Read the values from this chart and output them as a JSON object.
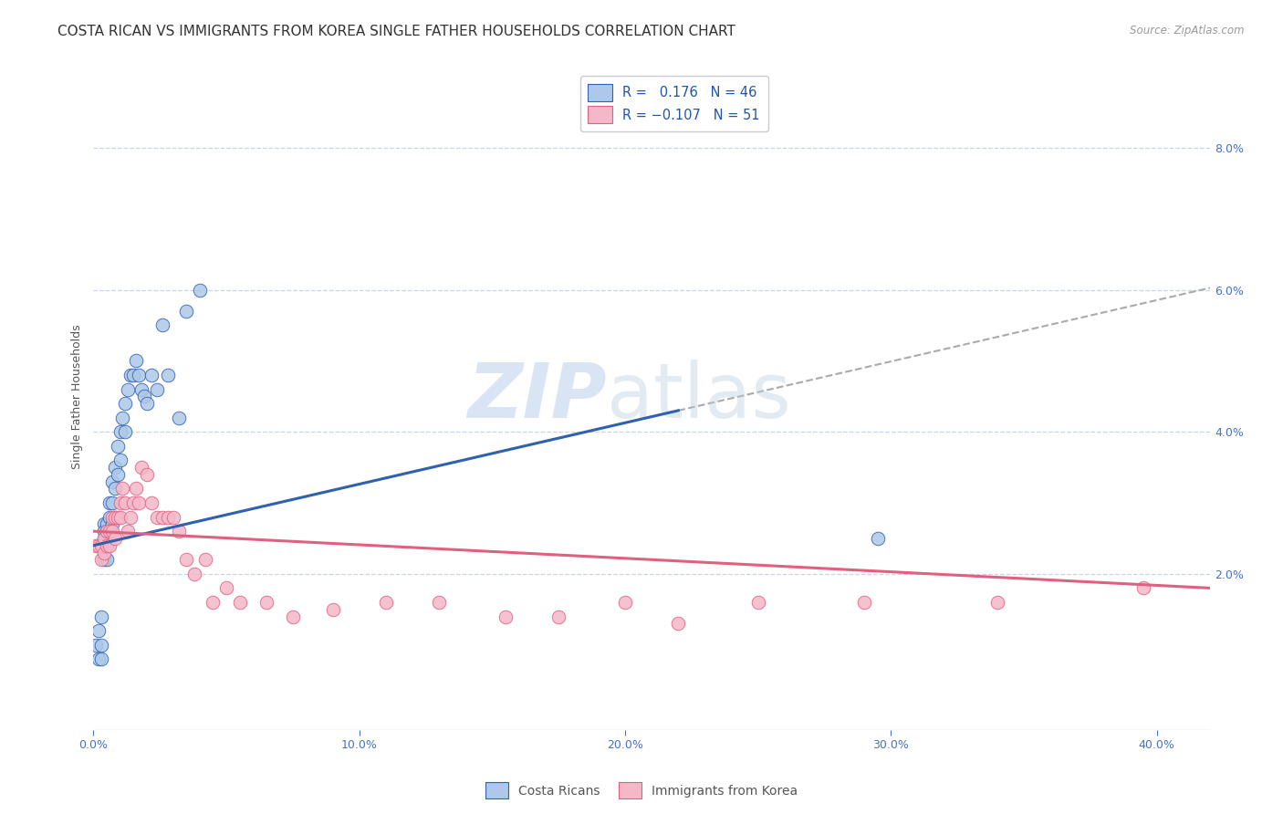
{
  "title": "COSTA RICAN VS IMMIGRANTS FROM KOREA SINGLE FATHER HOUSEHOLDS CORRELATION CHART",
  "source": "Source: ZipAtlas.com",
  "ylabel": "Single Father Households",
  "xlim": [
    0.0,
    0.42
  ],
  "ylim": [
    -0.002,
    0.092
  ],
  "xticks": [
    0.0,
    0.1,
    0.2,
    0.3,
    0.4
  ],
  "xtick_labels": [
    "0.0%",
    "10.0%",
    "20.0%",
    "30.0%",
    "40.0%"
  ],
  "yticks_right": [
    0.02,
    0.04,
    0.06,
    0.08
  ],
  "ytick_labels_right": [
    "2.0%",
    "4.0%",
    "6.0%",
    "8.0%"
  ],
  "blue_R": 0.176,
  "blue_N": 46,
  "pink_R": -0.107,
  "pink_N": 51,
  "blue_color": "#adc8e8",
  "pink_color": "#f5b8c8",
  "blue_line_color": "#3060b0",
  "pink_line_color": "#e06080",
  "trend_line_color": "#aaaaaa",
  "legend_label_blue": "Costa Ricans",
  "legend_label_pink": "Immigrants from Korea",
  "blue_scatter_x": [
    0.001,
    0.002,
    0.002,
    0.003,
    0.003,
    0.003,
    0.004,
    0.004,
    0.004,
    0.004,
    0.005,
    0.005,
    0.005,
    0.005,
    0.006,
    0.006,
    0.006,
    0.007,
    0.007,
    0.007,
    0.008,
    0.008,
    0.008,
    0.009,
    0.009,
    0.01,
    0.01,
    0.011,
    0.012,
    0.012,
    0.013,
    0.014,
    0.015,
    0.016,
    0.017,
    0.018,
    0.019,
    0.02,
    0.022,
    0.024,
    0.026,
    0.028,
    0.032,
    0.035,
    0.04,
    0.295
  ],
  "blue_scatter_y": [
    0.01,
    0.012,
    0.008,
    0.014,
    0.01,
    0.008,
    0.027,
    0.026,
    0.025,
    0.022,
    0.027,
    0.026,
    0.024,
    0.022,
    0.03,
    0.028,
    0.026,
    0.033,
    0.03,
    0.027,
    0.035,
    0.032,
    0.028,
    0.038,
    0.034,
    0.04,
    0.036,
    0.042,
    0.044,
    0.04,
    0.046,
    0.048,
    0.048,
    0.05,
    0.048,
    0.046,
    0.045,
    0.044,
    0.048,
    0.046,
    0.055,
    0.048,
    0.042,
    0.057,
    0.06,
    0.025
  ],
  "pink_scatter_x": [
    0.001,
    0.002,
    0.003,
    0.003,
    0.004,
    0.004,
    0.005,
    0.005,
    0.006,
    0.006,
    0.007,
    0.007,
    0.008,
    0.008,
    0.009,
    0.01,
    0.01,
    0.011,
    0.012,
    0.013,
    0.014,
    0.015,
    0.016,
    0.017,
    0.018,
    0.02,
    0.022,
    0.024,
    0.026,
    0.028,
    0.03,
    0.032,
    0.035,
    0.038,
    0.042,
    0.045,
    0.05,
    0.055,
    0.065,
    0.075,
    0.09,
    0.11,
    0.13,
    0.155,
    0.175,
    0.2,
    0.22,
    0.25,
    0.29,
    0.34,
    0.395
  ],
  "pink_scatter_y": [
    0.024,
    0.024,
    0.024,
    0.022,
    0.025,
    0.023,
    0.026,
    0.024,
    0.026,
    0.024,
    0.028,
    0.026,
    0.028,
    0.025,
    0.028,
    0.03,
    0.028,
    0.032,
    0.03,
    0.026,
    0.028,
    0.03,
    0.032,
    0.03,
    0.035,
    0.034,
    0.03,
    0.028,
    0.028,
    0.028,
    0.028,
    0.026,
    0.022,
    0.02,
    0.022,
    0.016,
    0.018,
    0.016,
    0.016,
    0.014,
    0.015,
    0.016,
    0.016,
    0.014,
    0.014,
    0.016,
    0.013,
    0.016,
    0.016,
    0.016,
    0.018
  ],
  "background_color": "#ffffff",
  "grid_color": "#c8d4e8",
  "title_fontsize": 11,
  "axis_label_fontsize": 9
}
